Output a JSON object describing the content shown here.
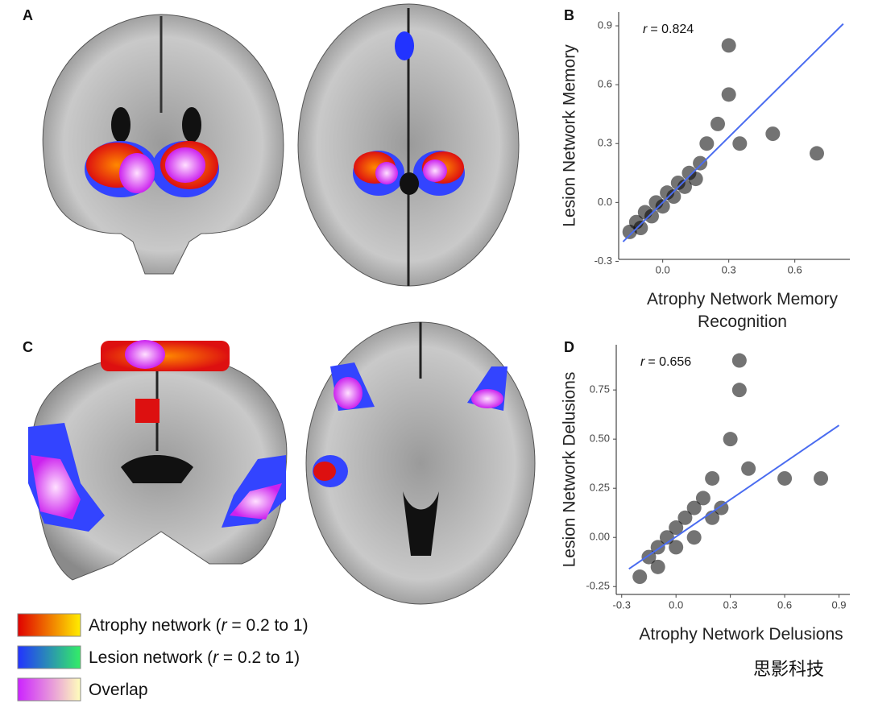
{
  "panel_labels": [
    "A",
    "B",
    "C",
    "D"
  ],
  "legend": [
    {
      "text_before": "Atrophy network (",
      "italic": "r",
      "text_after": " = 0.2 to 1)",
      "colors": [
        "#e00000",
        "#ffee00"
      ]
    },
    {
      "text_before": "Lesion network (",
      "italic": "r",
      "text_after": " = 0.2 to 1)",
      "colors": [
        "#2233ff",
        "#33ee66"
      ]
    },
    {
      "text_before": "Overlap",
      "colors": [
        "#cc22ff",
        "#ffffbb"
      ]
    }
  ],
  "watermark": "思影科技",
  "chart_data": [
    {
      "type": "scatter",
      "panel": "B",
      "r_label": {
        "italic": "r",
        "text": "= 0.824"
      },
      "xlabel": [
        "Atrophy Network Memory",
        "Recognition"
      ],
      "ylabel": "Lesion Network Memory",
      "xlim": [
        -0.2,
        0.85
      ],
      "ylim": [
        -0.29,
        0.97
      ],
      "xticks": [
        {
          "value": 0,
          "label": "0.0"
        },
        0.3,
        0.6
      ],
      "yticks": [
        -0.3,
        {
          "value": 0,
          "label": "0.0"
        },
        0.3,
        0.6,
        0.9
      ],
      "point_color": "#000000",
      "x": [
        -0.15,
        -0.12,
        -0.1,
        -0.08,
        -0.05,
        -0.03,
        0,
        0.02,
        0.05,
        0.07,
        0.1,
        0.12,
        0.15,
        0.17,
        0.2,
        0.25,
        0.3,
        0.35,
        0.5,
        0.7,
        0.3
      ],
      "y": [
        -0.15,
        -0.1,
        -0.13,
        -0.05,
        -0.07,
        0.0,
        -0.02,
        0.05,
        0.03,
        0.1,
        0.08,
        0.15,
        0.12,
        0.2,
        0.3,
        0.4,
        0.55,
        0.3,
        0.35,
        0.25,
        0.8
      ],
      "line": {
        "color": "#4a6cf0",
        "x": [
          -0.18,
          0.82
        ],
        "y": [
          -0.2,
          0.91
        ]
      }
    },
    {
      "type": "scatter",
      "panel": "D",
      "r_label": {
        "italic": "r",
        "text": "= 0.656"
      },
      "xlabel": [
        "Atrophy Network Delusions"
      ],
      "ylabel": "Lesion Network Delusions",
      "xlim": [
        -0.33,
        0.96
      ],
      "ylim": [
        -0.29,
        0.98
      ],
      "xticks": [
        -0.3,
        {
          "value": 0,
          "label": "0.0"
        },
        0.3,
        0.6,
        0.9
      ],
      "yticks": [
        -0.25,
        {
          "value": 0,
          "label": "0.00"
        },
        0.25,
        {
          "value": 0.5,
          "label": "0.50"
        },
        0.75
      ],
      "point_color": "#000000",
      "x": [
        -0.2,
        -0.15,
        -0.1,
        -0.1,
        -0.05,
        0,
        0.0,
        0.05,
        0.1,
        0.1,
        0.15,
        0.2,
        0.2,
        0.25,
        0.3,
        0.35,
        0.4,
        0.6,
        0.8,
        0.35
      ],
      "y": [
        -0.2,
        -0.1,
        -0.05,
        -0.15,
        0.0,
        0.05,
        -0.05,
        0.1,
        0.0,
        0.15,
        0.2,
        0.1,
        0.3,
        0.15,
        0.5,
        0.75,
        0.35,
        0.3,
        0.3,
        0.9
      ],
      "line": {
        "color": "#4a6cf0",
        "x": [
          -0.26,
          0.9
        ],
        "y": [
          -0.16,
          0.57
        ]
      }
    }
  ]
}
